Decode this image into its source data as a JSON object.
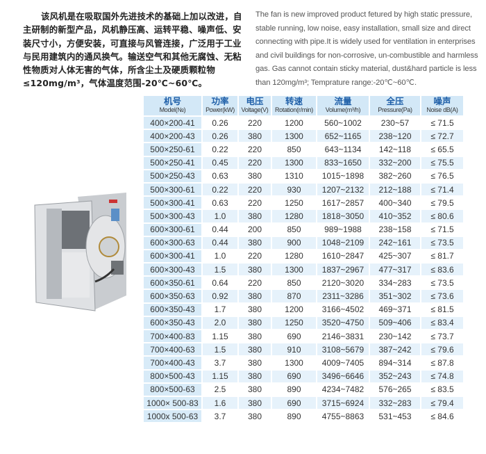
{
  "description_zh": "该风机是在吸取国外先进技术的基础上加以改进，自主研制的新型产品，风机静压高、运转平稳、噪声低、安装尺寸小，方便安装，可直接与风管连接，广泛用于工业与民用建筑内的通风换气。输送空气和其他无腐蚀、无粘性物质对人体无害的气体，所含尘土及硬质颗粒物≤120mg/m³，气体温度范围-20℃~60℃。",
  "description_en": "The fan is new improved product fetured by high static pressure, stable running, low noise, easy installation, small size and direct connecting with pipe.It is widely used for ventilation in enterprises and civil buildings for non-corrosive, un-combustible and harmless gas. Gas cannot contain sticky material, dust&hard particle is less than 120mg/m³; Temprature range:-20℃~60℃.",
  "table": {
    "headers": [
      {
        "zh": "机号",
        "en": "Model(№)"
      },
      {
        "zh": "功率",
        "en": "Power(kW)"
      },
      {
        "zh": "电压",
        "en": "Voltage(V)"
      },
      {
        "zh": "转速",
        "en": "Rotation(r/min)"
      },
      {
        "zh": "流量",
        "en": "Volume(m³/h)"
      },
      {
        "zh": "全压",
        "en": "Pressure(Pa)"
      },
      {
        "zh": "噪声",
        "en": "Noise dB(A)"
      }
    ],
    "rows": [
      [
        "400×200-41",
        "0.26",
        "220",
        "1200",
        "560~1002",
        "230~57",
        "≤ 71.5"
      ],
      [
        "400×200-43",
        "0.26",
        "380",
        "1300",
        "652~1165",
        "238~120",
        "≤ 72.7"
      ],
      [
        "500×250-61",
        "0.22",
        "220",
        "850",
        "643~1134",
        "142~118",
        "≤ 65.5"
      ],
      [
        "500×250-41",
        "0.45",
        "220",
        "1300",
        "833~1650",
        "332~200",
        "≤ 75.5"
      ],
      [
        "500×250-43",
        "0.63",
        "380",
        "1310",
        "1015~1898",
        "382~260",
        "≤ 76.5"
      ],
      [
        "500×300-61",
        "0.22",
        "220",
        "930",
        "1207~2132",
        "212~188",
        "≤ 71.4"
      ],
      [
        "500×300-41",
        "0.63",
        "220",
        "1250",
        "1617~2857",
        "400~340",
        "≤ 79.5"
      ],
      [
        "500×300-43",
        "1.0",
        "380",
        "1280",
        "1818~3050",
        "410~352",
        "≤ 80.6"
      ],
      [
        "600×300-61",
        "0.44",
        "200",
        "850",
        "989~1988",
        "238~158",
        "≤ 71.5"
      ],
      [
        "600×300-63",
        "0.44",
        "380",
        "900",
        "1048~2109",
        "242~161",
        "≤ 73.5"
      ],
      [
        "600×300-41",
        "1.0",
        "220",
        "1280",
        "1610~2847",
        "425~307",
        "≤ 81.7"
      ],
      [
        "600×300-43",
        "1.5",
        "380",
        "1300",
        "1837~2967",
        "477~317",
        "≤ 83.6"
      ],
      [
        "600×350-61",
        "0.64",
        "220",
        "850",
        "2120~3020",
        "334~283",
        "≤ 73.5"
      ],
      [
        "600×350-63",
        "0.92",
        "380",
        "870",
        "2311~3286",
        "351~302",
        "≤ 73.6"
      ],
      [
        "600×350-43",
        "1.7",
        "380",
        "1200",
        "3166~4502",
        "469~371",
        "≤ 81.5"
      ],
      [
        "600×350-43",
        "2.0",
        "380",
        "1250",
        "3520~4750",
        "509~406",
        "≤ 83.4"
      ],
      [
        "700×400-83",
        "1.15",
        "380",
        "690",
        "2146~3831",
        "230~142",
        "≤ 73.7"
      ],
      [
        "700×400-63",
        "1.5",
        "380",
        "910",
        "3108~5679",
        "387~242",
        "≤ 79.6"
      ],
      [
        "700×400-43",
        "3.7",
        "380",
        "1300",
        "4009~7405",
        "894~314",
        "≤ 87.8"
      ],
      [
        "800×500-43",
        "1.15",
        "380",
        "690",
        "3496~6646",
        "352~243",
        "≤ 74.8"
      ],
      [
        "800×500-63",
        "2.5",
        "380",
        "890",
        "4234~7482",
        "576~265",
        "≤ 83.5"
      ],
      [
        "1000× 500-83",
        "1.6",
        "380",
        "690",
        "3715~6924",
        "332~283",
        "≤ 79.4"
      ],
      [
        "1000x 500-63",
        "3.7",
        "380",
        "890",
        "4755~8863",
        "531~453",
        "≤ 84.6"
      ]
    ]
  },
  "colors": {
    "header_bg": "#d3e8f7",
    "header_text": "#1f5fa8",
    "stripe": "#e6f2fb"
  }
}
